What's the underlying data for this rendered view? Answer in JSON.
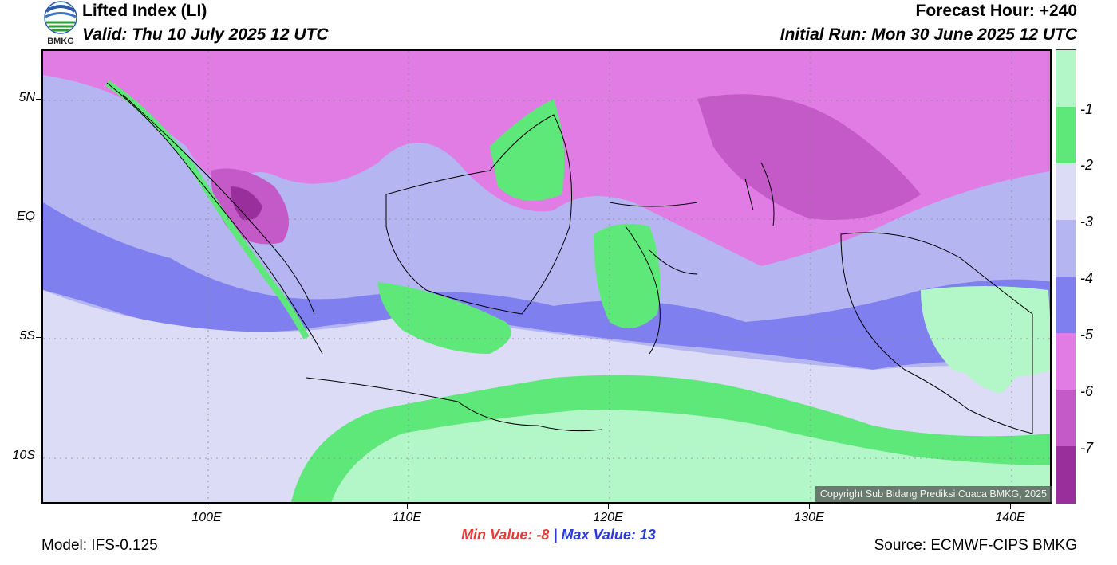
{
  "header": {
    "title": "Lifted Index (LI)",
    "valid": "Valid: Thu 10 July 2025 12 UTC",
    "forecast_hour": "Forecast Hour: +240",
    "initial_run": "Initial Run: Mon 30 June 2025 12 UTC",
    "logo_text": "BMKG"
  },
  "axes": {
    "y_labels": [
      "5N",
      "EQ",
      "5S",
      "10S"
    ],
    "x_labels": [
      "100E",
      "110E",
      "120E",
      "130E",
      "140E"
    ]
  },
  "colorbar": {
    "labels": [
      "-1",
      "-2",
      "-3",
      "-4",
      "-5",
      "-6",
      "-7"
    ],
    "colors": [
      "#b3f7c8",
      "#5fe87a",
      "#dcdcf7",
      "#b5b5f2",
      "#7f7ff0",
      "#e07ce3",
      "#c45ac8",
      "#982f9b"
    ]
  },
  "stats": {
    "min_label": "Min Value:",
    "min_value": "-8",
    "separator": "|",
    "max_label": "Max Value:",
    "max_value": "13"
  },
  "footer": {
    "model": "Model: IFS-0.125",
    "source": "Source: ECMWF-CIPS BMKG",
    "copyright": "Copyright Sub Bidang Prediksi Cuaca BMKG, 2025"
  }
}
